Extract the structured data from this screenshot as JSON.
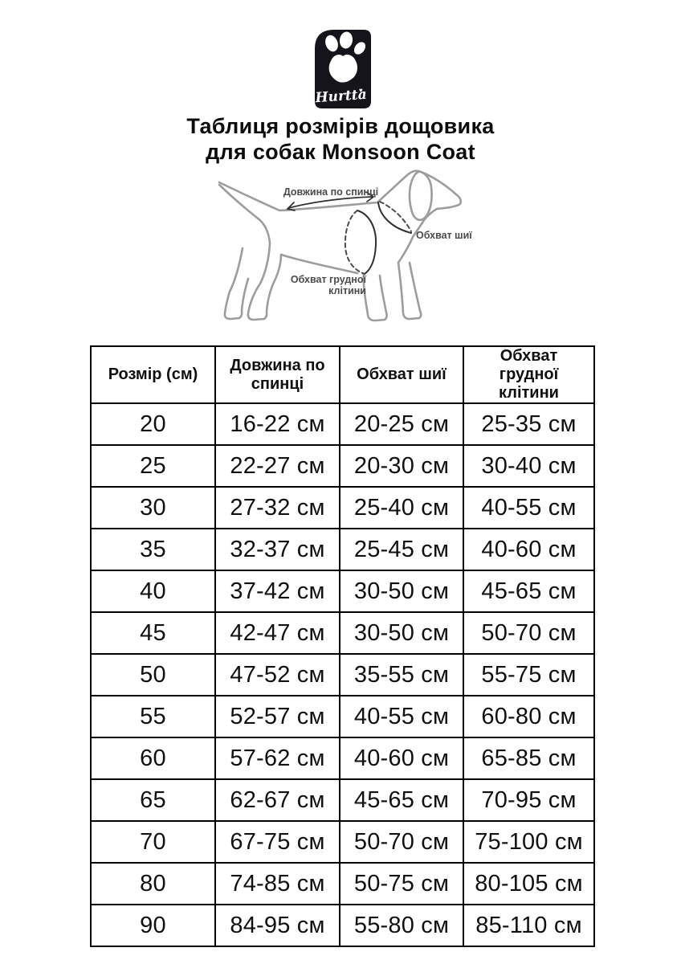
{
  "logo": {
    "brand": "Hurtta",
    "heart": "♥"
  },
  "title": {
    "line1": "Таблиця розмірів дощовика",
    "line2": "для собак Monsoon Coat"
  },
  "diagram": {
    "labels": {
      "back_length": "Довжина по спинці",
      "neck_girth": "Обхват шиї",
      "chest_line1": "Обхват грудної",
      "chest_line2": "клітини"
    }
  },
  "table": {
    "headers": [
      "Розмір (см)",
      "Довжина по спинці",
      "Обхват шиї",
      "Обхват грудної клітини"
    ],
    "rows": [
      [
        "20",
        "16-22 см",
        "20-25 см",
        "25-35 см"
      ],
      [
        "25",
        "22-27 см",
        "20-30 см",
        "30-40 см"
      ],
      [
        "30",
        "27-32 см",
        "25-40 см",
        "40-55 см"
      ],
      [
        "35",
        "32-37 см",
        "25-45 см",
        "40-60 см"
      ],
      [
        "40",
        "37-42 см",
        "30-50 см",
        "45-65 см"
      ],
      [
        "45",
        "42-47 см",
        "30-50 см",
        "50-70 см"
      ],
      [
        "50",
        "47-52 см",
        "35-55 см",
        "55-75 см"
      ],
      [
        "55",
        "52-57 см",
        "40-55 см",
        "60-80 см"
      ],
      [
        "60",
        "57-62 см",
        "40-60 см",
        "65-85 см"
      ],
      [
        "65",
        "62-67 см",
        "45-65 см",
        "70-95 см"
      ],
      [
        "70",
        "67-75 см",
        "50-70 см",
        "75-100 см"
      ],
      [
        "80",
        "74-85 см",
        "50-75 см",
        "80-105 см"
      ],
      [
        "90",
        "84-95 см",
        "55-80 см",
        "85-110 см"
      ]
    ]
  },
  "colors": {
    "background": "#ffffff",
    "text": "#0c0c0c",
    "table_border": "#000000",
    "logo_background": "#14141a",
    "diagram_stroke": "#9d9d9d",
    "diagram_dark_stroke": "#2f2f2f",
    "diagram_label": "#4b4b4b"
  }
}
